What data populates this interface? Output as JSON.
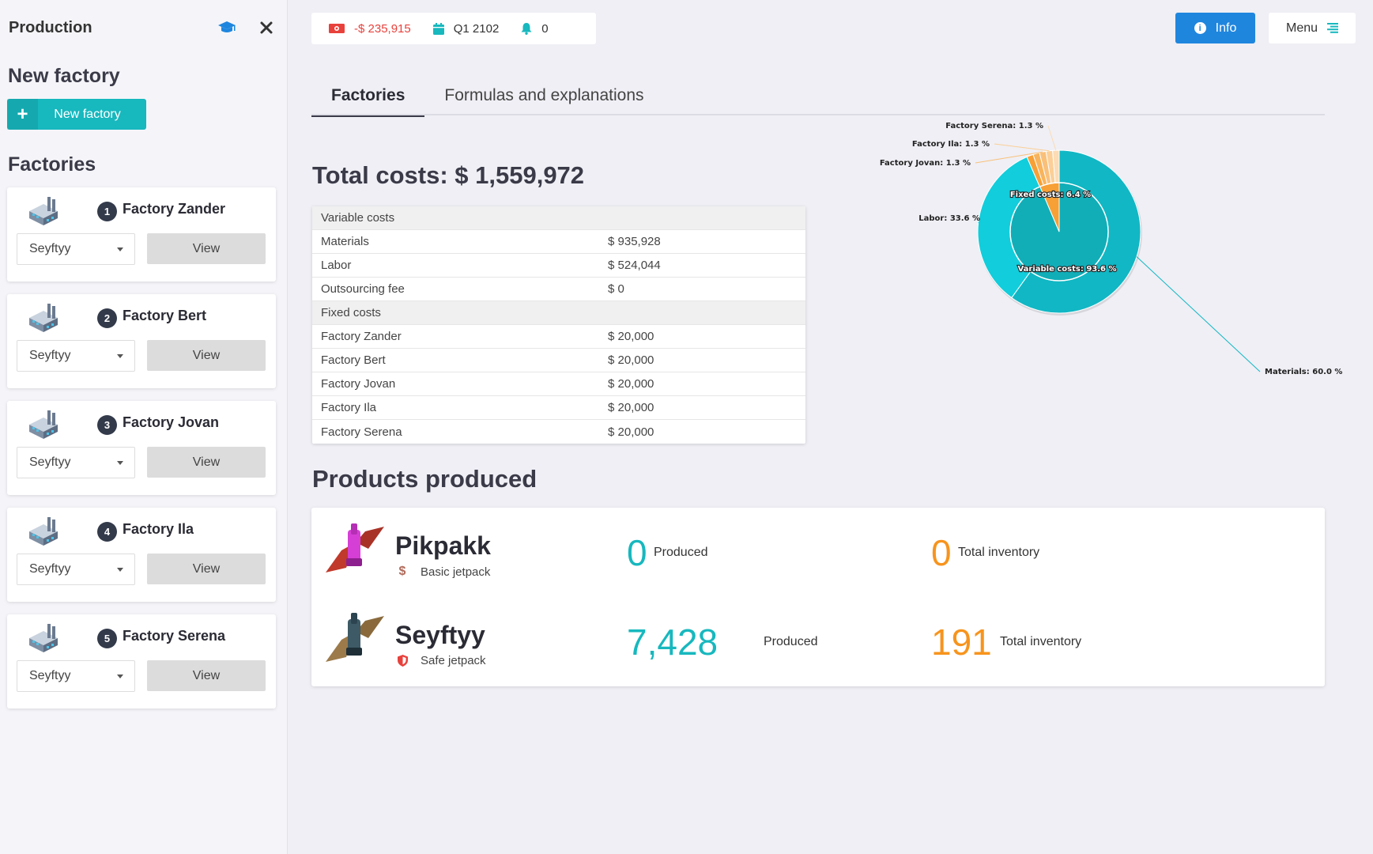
{
  "sidebar": {
    "title": "Production",
    "new_factory_heading": "New factory",
    "new_factory_button": "New factory",
    "factories_heading": "Factories",
    "factories": [
      {
        "number": "1",
        "name": "Factory Zander",
        "product": "Seyftyy",
        "view": "View"
      },
      {
        "number": "2",
        "name": "Factory Bert",
        "product": "Seyftyy",
        "view": "View"
      },
      {
        "number": "3",
        "name": "Factory Jovan",
        "product": "Seyftyy",
        "view": "View"
      },
      {
        "number": "4",
        "name": "Factory Ila",
        "product": "Seyftyy",
        "view": "View"
      },
      {
        "number": "5",
        "name": "Factory Serena",
        "product": "Seyftyy",
        "view": "View"
      }
    ]
  },
  "topbar": {
    "money": "-$ 235,915",
    "quarter": "Q1 2102",
    "notifications": "0",
    "info_button": "Info",
    "menu_button": "Menu"
  },
  "tabs": [
    "Factories",
    "Formulas and explanations"
  ],
  "costs": {
    "total": "Total costs: $ 1,559,972",
    "rows": [
      {
        "label": "Variable costs",
        "value": "",
        "header": true
      },
      {
        "label": "Materials",
        "value": "$ 935,928"
      },
      {
        "label": "Labor",
        "value": "$ 524,044"
      },
      {
        "label": "Outsourcing fee",
        "value": "$ 0"
      },
      {
        "label": "Fixed costs",
        "value": "",
        "header": true
      },
      {
        "label": "Factory Zander",
        "value": "$ 20,000"
      },
      {
        "label": "Factory Bert",
        "value": "$ 20,000"
      },
      {
        "label": "Factory Jovan",
        "value": "$ 20,000"
      },
      {
        "label": "Factory Ila",
        "value": "$ 20,000"
      },
      {
        "label": "Factory Serena",
        "value": "$ 20,000"
      }
    ]
  },
  "chart_data": {
    "type": "pie",
    "inner": [
      {
        "name": "Variable costs",
        "value": 93.6,
        "color": "#11aeb8",
        "label": "Variable costs: 93.6 %"
      },
      {
        "name": "Fixed costs",
        "value": 6.4,
        "color": "#f7a036",
        "label": "Fixed costs: 6.4 %"
      }
    ],
    "outer": [
      {
        "name": "Materials",
        "value": 60.0,
        "color": "#11b7c4",
        "label": "Materials: 60.0 %"
      },
      {
        "name": "Labor",
        "value": 33.6,
        "color": "#12cddb",
        "label": "Labor: 33.6 %"
      },
      {
        "name": "Factory Zander",
        "value": 1.3,
        "color": "#f7a036",
        "label": ""
      },
      {
        "name": "Factory Bert",
        "value": 1.3,
        "color": "#f8b45c",
        "label": ""
      },
      {
        "name": "Factory Jovan",
        "value": 1.3,
        "color": "#f9c07a",
        "label": "Factory Jovan: 1.3 %"
      },
      {
        "name": "Factory Ila",
        "value": 1.3,
        "color": "#fbcf97",
        "label": "Factory Ila: 1.3 %"
      },
      {
        "name": "Factory Serena",
        "value": 1.3,
        "color": "#fcdcb5",
        "label": "Factory Serena: 1.3 %"
      }
    ]
  },
  "products": {
    "heading": "Products produced",
    "items": [
      {
        "name": "Pikpakk",
        "subtitle": "Basic jetpack",
        "produced": "0",
        "produced_label": "Produced",
        "inventory": "0",
        "inventory_label": "Total inventory"
      },
      {
        "name": "Seyftyy",
        "subtitle": "Safe jetpack",
        "produced": "7,428",
        "produced_label": "Produced",
        "inventory": "191",
        "inventory_label": "Total inventory"
      }
    ]
  }
}
